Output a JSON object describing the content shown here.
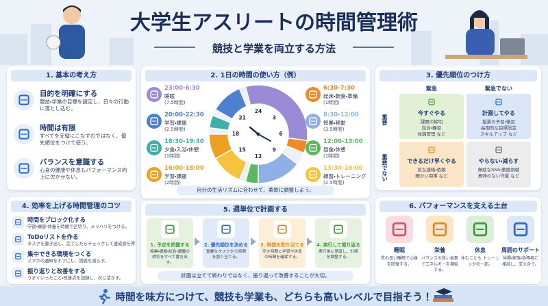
{
  "header": {
    "title": "大学生アスリートの時間管理術",
    "subtitle": "競技と学業を両立する方法"
  },
  "basics": {
    "heading": "1. 基本の考え方",
    "items": [
      {
        "title": "目的を明確にする",
        "text": "競技・学業の目標を設定し、日々の行動に落とし込む。"
      },
      {
        "title": "時間は有限",
        "text": "すべてを完璧にこなすのではなく、優先順位をつけて使う。"
      },
      {
        "title": "バランスを意識する",
        "text": "心身の健康や休息もパフォーマンス向上に欠かせない。"
      }
    ]
  },
  "daily": {
    "heading": "2. 1日の時間の使い方（例）",
    "clock_labels": [
      24,
      3,
      6,
      9,
      12,
      15,
      18,
      21
    ],
    "schedule_left": [
      {
        "time": "23:00-6:30",
        "activity": "睡眠",
        "duration": "(7.5時間)",
        "color": "#9b8ad6"
      },
      {
        "time": "20:00-22:30",
        "activity": "学習・課題",
        "duration": "(2.5時間)",
        "color": "#4f7fcf"
      },
      {
        "time": "18:30-19:30",
        "activity": "夕食・入浴・休憩",
        "duration": "(1時間)",
        "color": "#3fb0a8"
      },
      {
        "time": "16:00-18:00",
        "activity": "学習・課題",
        "duration": "(2時間)",
        "color": "#f0a020"
      }
    ],
    "schedule_right": [
      {
        "time": "6:30-7:30",
        "activity": "起床・朝食・準備",
        "duration": "(1時間)",
        "color": "#f08a24"
      },
      {
        "time": "8:30-12:00",
        "activity": "授業・移動",
        "duration": "(3.5時間)",
        "color": "#8fb0e6"
      },
      {
        "time": "12:00-13:00",
        "activity": "昼食・休憩",
        "duration": "(1時間)",
        "color": "#5cb85c"
      },
      {
        "time": "13:30-16:00",
        "activity": "練習・トレーニング",
        "duration": "(2.5時間)",
        "color": "#f7c23c"
      }
    ],
    "note": "自分の生活リズムに合わせて、柔軟に調整しよう。"
  },
  "priority": {
    "heading": "3. 優先順位のつけ方",
    "columns": [
      "緊急",
      "緊急でない"
    ],
    "rows": [
      "重要",
      "重要でない"
    ],
    "quadrants": [
      {
        "title": "今すぐやる",
        "lines": [
          "課題の締切",
          "試合・練習",
          "体調管理 など"
        ]
      },
      {
        "title": "計画してやる",
        "lines": [
          "授業の予習・復習",
          "長期的な目標設定",
          "スキルアップ など"
        ]
      },
      {
        "title": "できるだけ早くやる",
        "lines": [
          "急な連絡・依頼",
          "細かい用事 など"
        ]
      },
      {
        "title": "やらない・減らす",
        "lines": [
          "無駄なSNS・動画視聴",
          "意味のない作業 など"
        ]
      }
    ]
  },
  "tips": {
    "heading": "4. 効率を上げる時間管理のコツ",
    "items": [
      {
        "title": "時間をブロック化する",
        "text": "学習・練習・休養を時間で区切り、メリハリをつける。"
      },
      {
        "title": "ToDoリストを作る",
        "text": "タスクを書き出し、完了したらチェックして達成感を得る。"
      },
      {
        "title": "集中できる環境をつくる",
        "text": "スマホの通知をオフにし、誘惑を減らす。"
      },
      {
        "title": "振り返りと改善をする",
        "text": "うまくいったこと・改善点を記録し、次に活かす。"
      }
    ]
  },
  "weekly": {
    "heading": "5. 週単位で計画する",
    "steps": [
      {
        "title": "1. 予定を把握する",
        "text": "授業・課題・試合・講義の締切をすべて書き出す。"
      },
      {
        "title": "2. 優先順位を決める",
        "text": "重要なタスクから時間を割り当てる。"
      },
      {
        "title": "3. 時間を割り当てる",
        "text": "空き時間に学習や休息の時間を確保する。"
      },
      {
        "title": "4. 実行して振り返る",
        "text": "実行後に見直し、計画を調整する。"
      }
    ],
    "note": "計画は立てて終わりではなく、振り返って改善することが大切。"
  },
  "foundation": {
    "heading": "6. パフォーマンスを支える土台",
    "items": [
      {
        "title": "睡眠",
        "text": "質の良い睡眠で心身を回復する。"
      },
      {
        "title": "栄養",
        "text": "バランスの良い食事でエネルギーを補給する。"
      },
      {
        "title": "休息",
        "text": "休むことも トレーニングの一部。"
      },
      {
        "title": "周囲のサポート",
        "text": "仲間・家族・指導者に相談し、支え合う。"
      }
    ]
  },
  "footer": {
    "text": "時間を味方につけて、競技も学業も、どちらも高いレベルで目指そう！"
  }
}
